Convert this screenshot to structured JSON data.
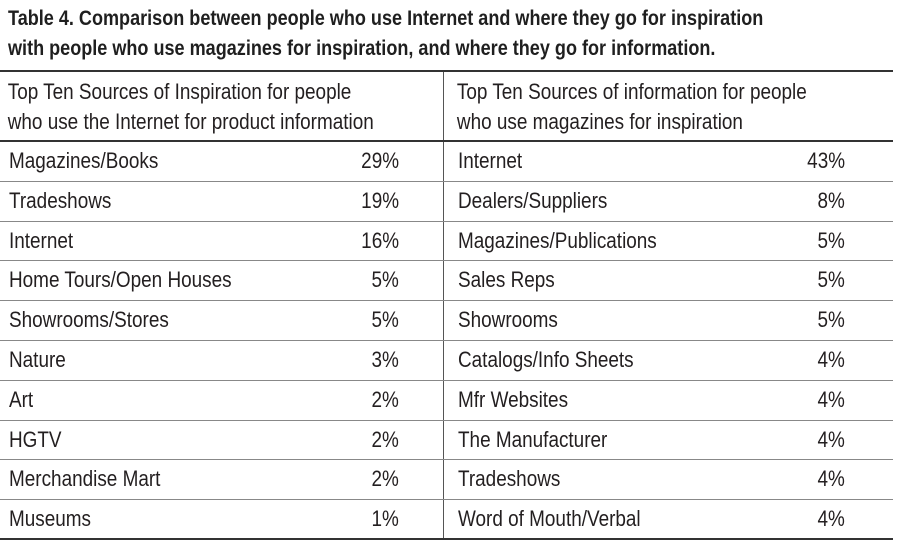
{
  "title": {
    "line1": "Table 4. Comparison between people who use Internet and where they go for inspiration",
    "line2": "with people who use magazines for inspiration, and where they go for information."
  },
  "headers": {
    "left_line1": "Top Ten Sources of Inspiration for people",
    "left_line2": "who use the Internet for product information",
    "right_line1": "Top Ten Sources of information for people",
    "right_line2": "who use magazines for inspiration"
  },
  "rows": [
    {
      "left_label": "Magazines/Books",
      "left_value": "29%",
      "right_label": "Internet",
      "right_value": "43%"
    },
    {
      "left_label": "Tradeshows",
      "left_value": "19%",
      "right_label": "Dealers/Suppliers",
      "right_value": "8%"
    },
    {
      "left_label": "Internet",
      "left_value": "16%",
      "right_label": "Magazines/Publications",
      "right_value": "5%"
    },
    {
      "left_label": "Home Tours/Open Houses",
      "left_value": "5%",
      "right_label": "Sales Reps",
      "right_value": "5%"
    },
    {
      "left_label": "Showrooms/Stores",
      "left_value": "5%",
      "right_label": "Showrooms",
      "right_value": "5%"
    },
    {
      "left_label": "Nature",
      "left_value": "3%",
      "right_label": "Catalogs/Info Sheets",
      "right_value": "4%"
    },
    {
      "left_label": "Art",
      "left_value": "2%",
      "right_label": "Mfr Websites",
      "right_value": "4%"
    },
    {
      "left_label": "HGTV",
      "left_value": "2%",
      "right_label": "The Manufacturer",
      "right_value": "4%"
    },
    {
      "left_label": "Merchandise Mart",
      "left_value": "2%",
      "right_label": "Tradeshows",
      "right_value": "4%"
    },
    {
      "left_label": "Museums",
      "left_value": "1%",
      "right_label": "Word of Mouth/Verbal",
      "right_value": "4%"
    }
  ]
}
